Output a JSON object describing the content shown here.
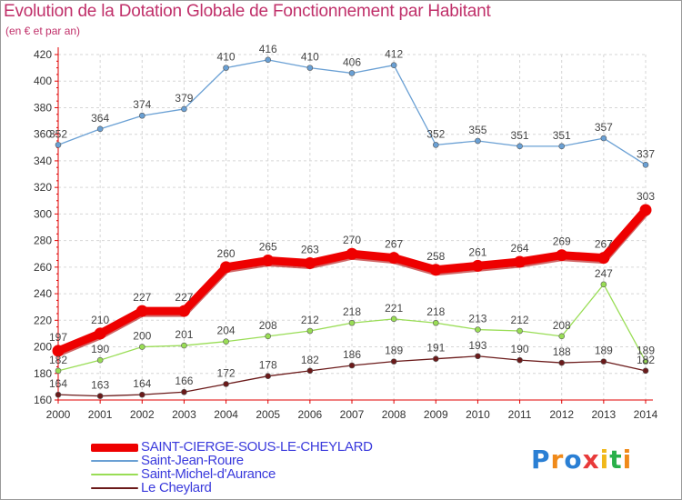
{
  "header": {
    "title": "Evolution de la Dotation Globale de Fonctionnement par Habitant",
    "subtitle": "(en € et par an)"
  },
  "logo": {
    "text": "Proxiti"
  },
  "colors": {
    "title": "#c0306a",
    "axis": "#e00000",
    "grid": "#d6d6d6",
    "legend_text": "#3a3adc"
  },
  "chart_data": {
    "type": "line",
    "title": "Evolution de la Dotation Globale de Fonctionnement par Habitant",
    "subtitle": "(en € et par an)",
    "x": [
      "2000",
      "2001",
      "2002",
      "2003",
      "2004",
      "2005",
      "2006",
      "2007",
      "2008",
      "2009",
      "2010",
      "2011",
      "2012",
      "2013",
      "2014"
    ],
    "ylim": [
      160,
      420
    ],
    "yticks": [
      160,
      180,
      200,
      220,
      240,
      260,
      280,
      300,
      320,
      340,
      360,
      380,
      400,
      420
    ],
    "grid": true,
    "legend_position": "bottom-left",
    "series": [
      {
        "name": "SAINT-CIERGE-SOUS-LE-CHEYLARD",
        "color": "#ee0000",
        "width": 9,
        "values": [
          197,
          210,
          227,
          227,
          260,
          265,
          263,
          270,
          267,
          258,
          261,
          264,
          269,
          267,
          303
        ]
      },
      {
        "name": "Saint-Jean-Roure",
        "color": "#6aa0d4",
        "width": 1.3,
        "values": [
          352,
          364,
          374,
          379,
          410,
          416,
          410,
          406,
          412,
          352,
          355,
          351,
          351,
          357,
          337
        ]
      },
      {
        "name": "Saint-Michel-d'Aurance",
        "color": "#99dd55",
        "width": 1.3,
        "values": [
          182,
          190,
          200,
          201,
          204,
          208,
          212,
          218,
          221,
          218,
          213,
          212,
          208,
          247,
          189
        ]
      },
      {
        "name": "Le Cheylard",
        "color": "#6b1a1a",
        "width": 1.3,
        "values": [
          164,
          163,
          164,
          166,
          172,
          178,
          182,
          186,
          189,
          191,
          193,
          190,
          188,
          189,
          182
        ]
      }
    ]
  }
}
